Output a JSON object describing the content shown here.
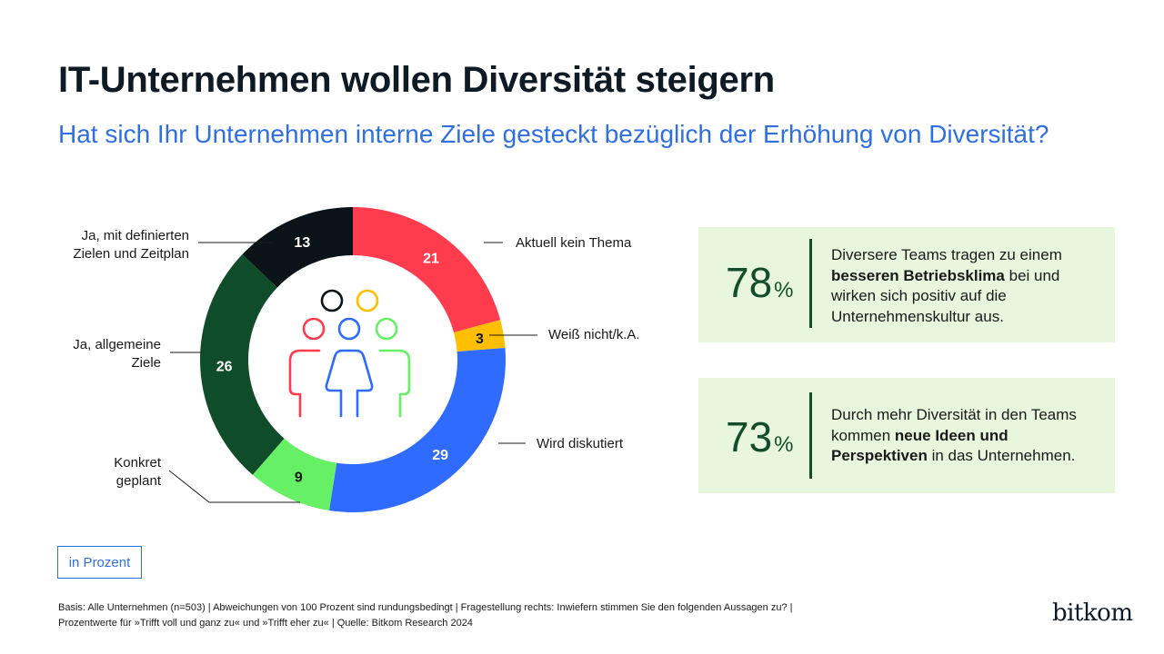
{
  "title": "IT-Unternehmen wollen Diversität steigern",
  "subtitle": "Hat sich Ihr Unternehmen interne Ziele gesteckt bezüglich der Erhöhung von Diversität?",
  "chart_data": {
    "type": "pie",
    "variant": "donut",
    "unit": "in Prozent",
    "slices": [
      {
        "label": "Aktuell kein Thema",
        "value": 21,
        "color": "#ff3b4e"
      },
      {
        "label": "Weiß nicht/k.A.",
        "value": 3,
        "color": "#ffbf00"
      },
      {
        "label": "Wird diskutiert",
        "value": 29,
        "color": "#2f6bff"
      },
      {
        "label": "Konkret geplant",
        "value": 9,
        "color": "#66f066"
      },
      {
        "label": "Ja, allgemeine Ziele",
        "value": 26,
        "color": "#0f4d2a"
      },
      {
        "label": "Ja, mit definierten Zielen und Zeitplan",
        "value": 13,
        "color": "#0a1318"
      }
    ],
    "center_icon": "diverse-people-icon"
  },
  "stats": [
    {
      "value": "78",
      "unit": "%",
      "text_parts": [
        {
          "t": "Diversere Teams tragen zu einem ",
          "b": false
        },
        {
          "t": "besseren Betriebsklima",
          "b": true
        },
        {
          "t": " bei und wirken sich positiv auf die Unternehmenskultur aus.",
          "b": false
        }
      ]
    },
    {
      "value": "73",
      "unit": "%",
      "text_parts": [
        {
          "t": "Durch mehr Diversität in den Teams kommen ",
          "b": false
        },
        {
          "t": "neue Ideen und Perspektiven",
          "b": true
        },
        {
          "t": " in das Unternehmen.",
          "b": false
        }
      ]
    }
  ],
  "unit_label": "in Prozent",
  "footnote_line1": "Basis: Alle Unternehmen (n=503) | Abweichungen von 100 Prozent sind rundungsbedingt | Fragestellung rechts: Inwiefern stimmen Sie den folgenden Aussagen zu? |",
  "footnote_line2": "Prozentwerte für »Trifft voll und ganz zu« und »Trifft eher zu« | Quelle: Bitkom Research 2024",
  "logo": "bitkom",
  "colors": {
    "accent": "#2f6fe0",
    "dark_green": "#144d2c",
    "box_bg": "#e7f6dc"
  }
}
